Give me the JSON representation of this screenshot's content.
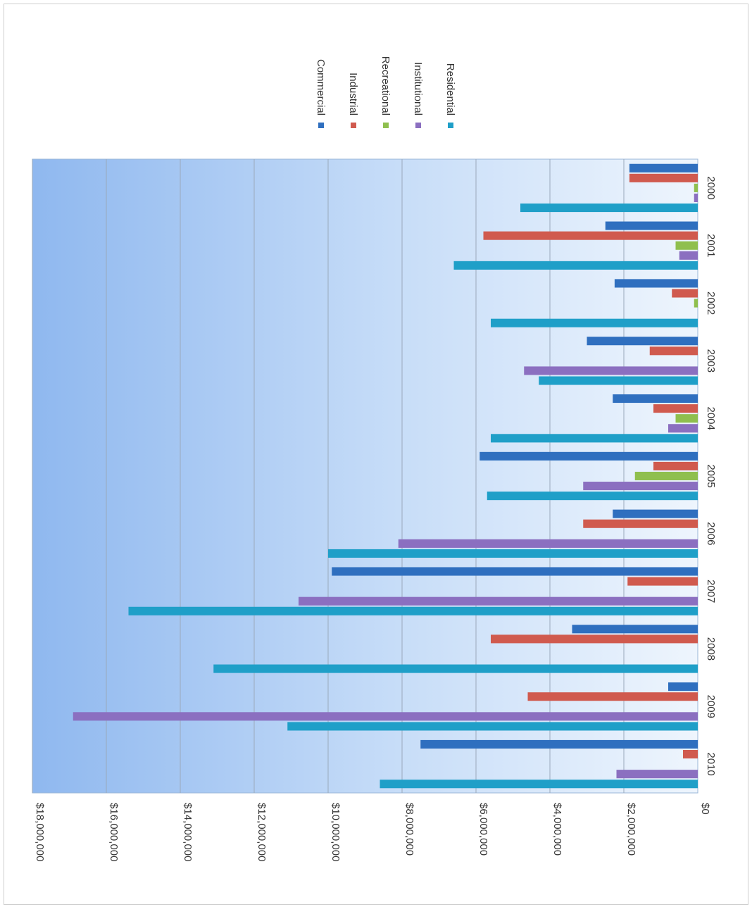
{
  "chart_data": {
    "type": "bar",
    "orientation": "rotated-90-clockwise",
    "categories": [
      "2000",
      "2001",
      "2002",
      "2003",
      "2004",
      "2005",
      "2006",
      "2007",
      "2008",
      "2009",
      "2010"
    ],
    "series": [
      {
        "name": "Commercial",
        "color": "#2f6fbf",
        "values": [
          1850000,
          2500000,
          2250000,
          3000000,
          2300000,
          5900000,
          2300000,
          9900000,
          3400000,
          800000,
          7500000
        ]
      },
      {
        "name": "Industrial",
        "color": "#d05a4e",
        "values": [
          1850000,
          5800000,
          700000,
          1300000,
          1200000,
          1200000,
          3100000,
          1900000,
          5600000,
          4600000,
          400000
        ]
      },
      {
        "name": "Recreational",
        "color": "#8fbf4e",
        "values": [
          100000,
          600000,
          100000,
          0,
          600000,
          1700000,
          0,
          0,
          0,
          0,
          0
        ]
      },
      {
        "name": "Institutional",
        "color": "#8b6fc0",
        "values": [
          100000,
          500000,
          0,
          4700000,
          800000,
          3100000,
          8100000,
          10800000,
          0,
          16900000,
          2200000
        ]
      },
      {
        "name": "Residential",
        "color": "#1f9fc8",
        "values": [
          4800000,
          6600000,
          5600000,
          4300000,
          5600000,
          5700000,
          10000000,
          15400000,
          13100000,
          11100000,
          8600000
        ]
      }
    ],
    "y_ticks": [
      "$0",
      "$2,000,000",
      "$4,000,000",
      "$6,000,000",
      "$8,000,000",
      "$10,000,000",
      "$12,000,000",
      "$14,000,000",
      "$16,000,000",
      "$18,000,000"
    ],
    "ylim": [
      0,
      18000000
    ],
    "grid": true,
    "legend": "top-right",
    "legend_labels": [
      "Commercial",
      "Industrial",
      "Recreational",
      "Institutional",
      "Residential"
    ]
  }
}
